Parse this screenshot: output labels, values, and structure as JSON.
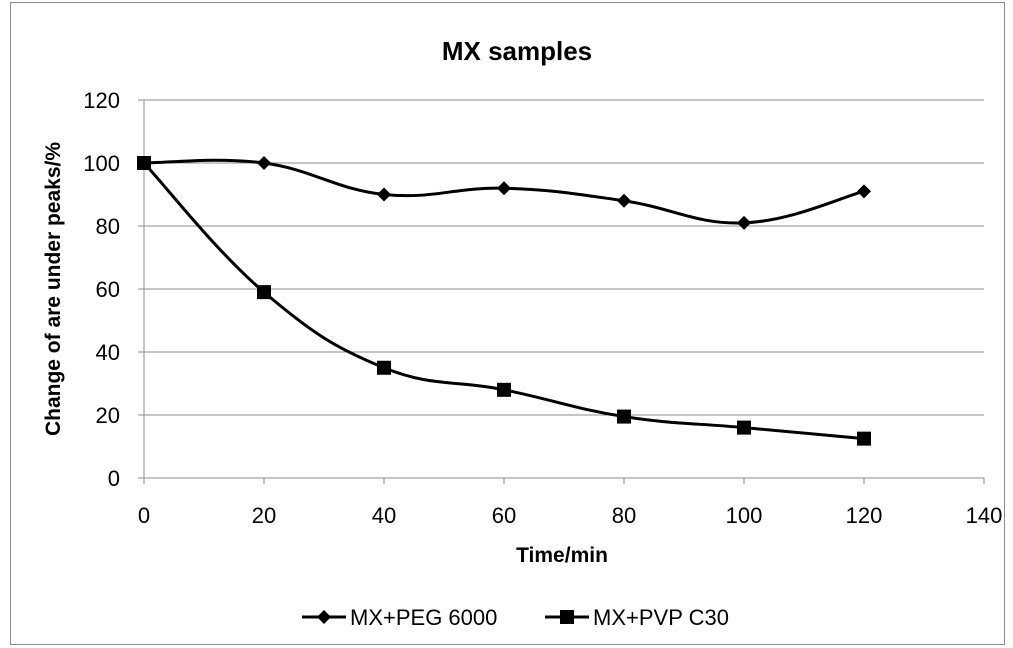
{
  "chart_data": {
    "type": "line",
    "title": "MX samples",
    "xlabel": "Time/min",
    "ylabel": "Change of are under peaks/%",
    "xlim": [
      0,
      140
    ],
    "ylim": [
      0,
      120
    ],
    "xticks": [
      0,
      20,
      40,
      60,
      80,
      100,
      120,
      140
    ],
    "yticks": [
      0,
      20,
      40,
      60,
      80,
      100,
      120
    ],
    "grid": "horizontal",
    "legend_position": "bottom",
    "x": [
      0,
      20,
      40,
      60,
      80,
      100,
      120
    ],
    "series": [
      {
        "name": "MX+PEG 6000",
        "marker": "diamond",
        "color": "#000000",
        "values": [
          100,
          100,
          90,
          92,
          88,
          81,
          91
        ]
      },
      {
        "name": "MX+PVP C30",
        "marker": "square",
        "color": "#000000",
        "values": [
          100,
          59,
          35,
          28,
          19.5,
          16,
          12.5
        ]
      }
    ]
  }
}
